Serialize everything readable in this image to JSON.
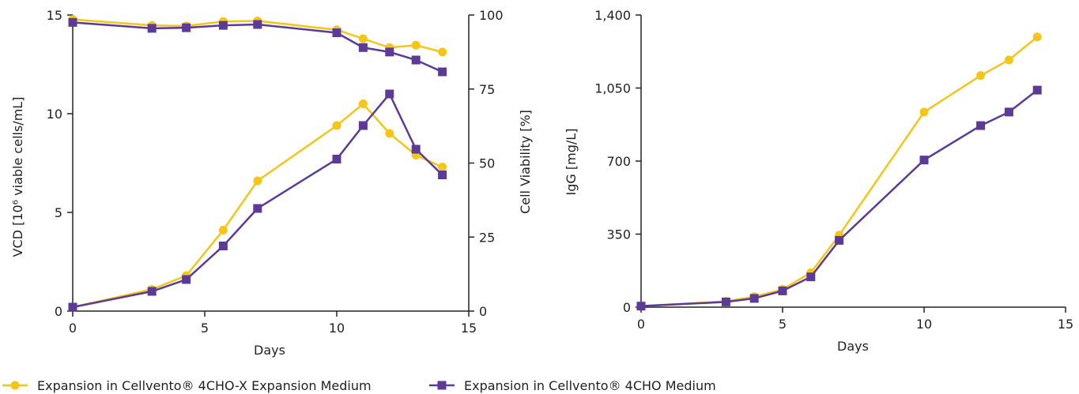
{
  "colors": {
    "cellvento_4cho_x": "#f5c518",
    "cellvento_4cho": "#5b3a98",
    "axis": "#222222"
  },
  "legend": [
    {
      "label": "Expansion in Cellvento® 4CHO-X Expansion Medium",
      "marker": "circle",
      "color": "#f5c518"
    },
    {
      "label": "Expansion in Cellvento® 4CHO Medium",
      "marker": "square",
      "color": "#5b3a98"
    }
  ],
  "chart_data": [
    {
      "type": "line",
      "xlabel": "Days",
      "ylabel": "VCD [10⁶ viable cells/mL]",
      "ylabel_right": "Cell Viability [%]",
      "xlim": [
        0,
        15
      ],
      "ylim": [
        0,
        15
      ],
      "ylim_right": [
        0,
        100
      ],
      "x_ticks": [
        0,
        5,
        10,
        15
      ],
      "y_ticks": [
        0,
        5,
        10,
        15
      ],
      "y_ticks_right": [
        0,
        25,
        50,
        75,
        100
      ],
      "series": [
        {
          "name": "Expansion in Cellvento® 4CHO-X Expansion Medium",
          "axis": "left",
          "marker": "circle",
          "color": "#f5c518",
          "x": [
            0,
            3,
            4.3,
            5.7,
            7,
            10,
            11,
            12,
            13,
            14
          ],
          "y": [
            0.2,
            1.1,
            1.8,
            4.1,
            6.6,
            9.4,
            10.5,
            9.0,
            7.9,
            7.3
          ]
        },
        {
          "name": "Expansion in Cellvento® 4CHO Medium",
          "axis": "left",
          "marker": "square",
          "color": "#5b3a98",
          "x": [
            0,
            3,
            4.3,
            5.7,
            7,
            10,
            11,
            12,
            13,
            14
          ],
          "y": [
            0.2,
            1.0,
            1.6,
            3.3,
            5.2,
            7.7,
            9.4,
            11.0,
            8.2,
            6.9
          ]
        },
        {
          "name": "Expansion in Cellvento® 4CHO-X Expansion Medium",
          "axis": "right",
          "marker": "circle",
          "color": "#f5c518",
          "x": [
            0,
            3,
            4.3,
            5.7,
            7,
            10,
            11,
            12,
            13,
            14
          ],
          "y": [
            98.5,
            96.5,
            96.3,
            97.8,
            98.0,
            95.0,
            92.0,
            89.0,
            89.8,
            87.5
          ]
        },
        {
          "name": "Expansion in Cellvento® 4CHO Medium",
          "axis": "right",
          "marker": "square",
          "color": "#5b3a98",
          "x": [
            0,
            3,
            4.3,
            5.7,
            7,
            10,
            11,
            12,
            13,
            14
          ],
          "y": [
            97.5,
            95.5,
            95.7,
            96.5,
            96.8,
            94.0,
            89.0,
            87.5,
            84.8,
            80.8
          ]
        }
      ]
    },
    {
      "type": "line",
      "xlabel": "Days",
      "ylabel": "IgG [mg/L]",
      "xlim": [
        0,
        15
      ],
      "ylim": [
        0,
        1400
      ],
      "x_ticks": [
        0,
        5,
        10,
        15
      ],
      "y_ticks": [
        0,
        350,
        700,
        1050,
        1400
      ],
      "y_tick_labels": [
        "0",
        "350",
        "700",
        "1,050",
        "1,400"
      ],
      "series": [
        {
          "name": "Expansion in Cellvento® 4CHO-X Expansion Medium",
          "marker": "circle",
          "color": "#f5c518",
          "x": [
            0,
            3,
            4,
            5,
            6,
            7,
            10,
            12,
            13,
            14
          ],
          "y": [
            5,
            28,
            50,
            85,
            165,
            345,
            935,
            1110,
            1185,
            1295
          ]
        },
        {
          "name": "Expansion in Cellvento® 4CHO Medium",
          "marker": "square",
          "color": "#5b3a98",
          "x": [
            0,
            3,
            4,
            5,
            6,
            7,
            10,
            12,
            13,
            14
          ],
          "y": [
            5,
            25,
            42,
            78,
            145,
            320,
            705,
            870,
            935,
            1040
          ]
        }
      ]
    }
  ]
}
